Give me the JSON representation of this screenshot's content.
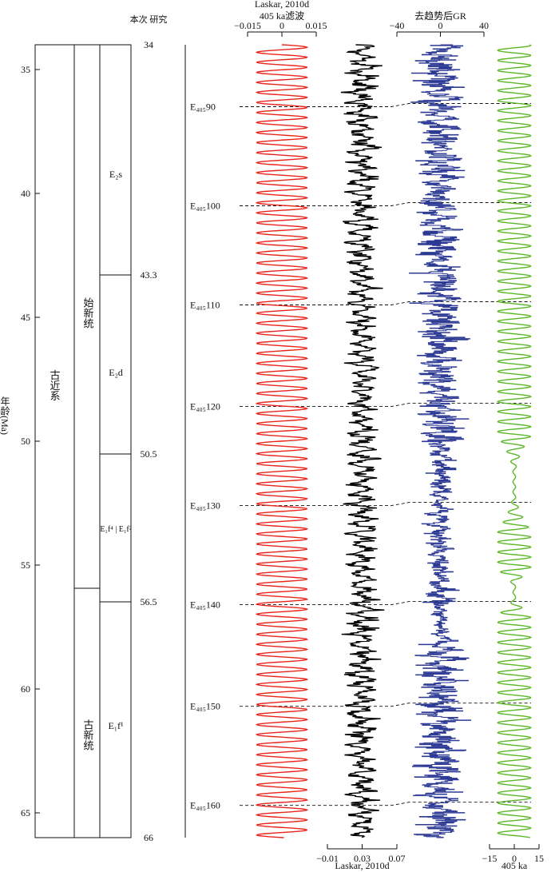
{
  "chart_data": {
    "type": "line",
    "y_axis": {
      "label": "年龄(Ma)",
      "ylim": [
        34,
        66
      ],
      "ticks": [
        35,
        40,
        45,
        50,
        55,
        60,
        65
      ],
      "inverted": true
    },
    "strat_column": {
      "system": "古近系",
      "series": [
        {
          "name": "始新统",
          "top": 34,
          "base": 56
        },
        {
          "name": "古新统",
          "top": 56,
          "base": 66
        }
      ],
      "units": [
        {
          "label": "E₂s",
          "top": 34,
          "base": 43.3
        },
        {
          "label": "E₂d",
          "top": 43.3,
          "base": 50.5
        },
        {
          "label": "E₁f⁴ | E₁f²",
          "top": 50.5,
          "base": 56.5
        },
        {
          "label": "E₁f¹",
          "top": 56.5,
          "base": 66
        }
      ],
      "boundary_header": "本次 研究",
      "boundary_ages": [
        "34",
        "43.3",
        "50.5",
        "56.5",
        "66"
      ]
    },
    "cycles": [
      {
        "label": "E₄₀₅90",
        "age": 36.5
      },
      {
        "label": "E₄₀₅100",
        "age": 40.5
      },
      {
        "label": "E₄₀₅110",
        "age": 44.5
      },
      {
        "label": "E₄₀₅120",
        "age": 48.6
      },
      {
        "label": "E₄₀₅130",
        "age": 52.6
      },
      {
        "label": "E₄₀₅140",
        "age": 56.6
      },
      {
        "label": "E₄₀₅150",
        "age": 60.7
      },
      {
        "label": "E₄₀₅160",
        "age": 64.7
      }
    ],
    "series": [
      {
        "name": "Laskar, 2010d 405 ka滤波",
        "color": "#e8251c",
        "xlim": [
          -0.015,
          0.015
        ],
        "ticks": [
          "−0.015",
          "0",
          "0.015"
        ],
        "axis_position": "top",
        "period_ma": 0.405,
        "amplitude": 0.011
      },
      {
        "name": "Laskar, 2010d",
        "color": "#000000",
        "xlim": [
          -0.01,
          0.07
        ],
        "ticks": [
          "−0.01",
          "0.03",
          "0.07"
        ],
        "axis_position": "bottom",
        "mean": 0.03,
        "amplitude": 0.025
      },
      {
        "name": "去趋势后GR",
        "color": "#2d3a94",
        "xlim": [
          -40,
          40
        ],
        "ticks": [
          "−40",
          "0",
          "40"
        ],
        "axis_position": "top",
        "mean": 0,
        "amplitude": 25
      },
      {
        "name": "405 ka",
        "color": "#5cb82a",
        "xlim": [
          -15,
          15
        ],
        "ticks": [
          "−15",
          "0",
          "15"
        ],
        "axis_position": "bottom",
        "period_ma": 0.405,
        "amplitude": 10,
        "low_amplitude_intervals": [
          [
            49.8,
            53.6
          ],
          [
            55.2,
            57.0
          ]
        ]
      }
    ]
  }
}
